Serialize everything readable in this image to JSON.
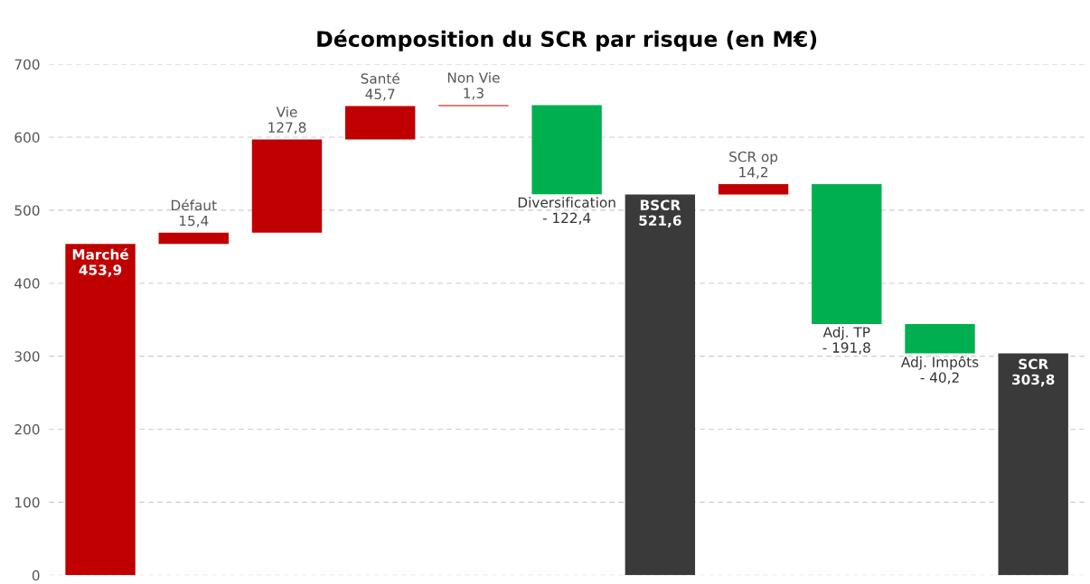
{
  "chart_data": {
    "type": "bar",
    "title": "Décomposition du SCR par risque (en M€)",
    "categories": [
      "Marché",
      "Défaut",
      "Vie",
      "Santé",
      "Non Vie",
      "Diversification",
      "BSCR",
      "SCR op",
      "Adj. TP",
      "Adj. Impôts",
      "SCR"
    ],
    "values": [
      453.9,
      15.4,
      127.8,
      45.7,
      1.3,
      -122.4,
      521.6,
      14.2,
      -191.8,
      -40.2,
      303.8
    ],
    "base": [
      0,
      453.9,
      469.3,
      597.1,
      642.8,
      644.1,
      0,
      521.6,
      535.8,
      344.0,
      0
    ],
    "colors": [
      "#c00000",
      "#c00000",
      "#c00000",
      "#c00000",
      "#c00000",
      "#00b050",
      "#3a3a3a",
      "#c00000",
      "#00b050",
      "#00b050",
      "#3a3a3a"
    ],
    "value_labels": [
      "453,9",
      "15,4",
      "127,8",
      "45,7",
      "1,3",
      "- 122,4",
      "521,6",
      "14,2",
      "- 191,8",
      "- 40,2",
      "303,8"
    ],
    "ylim": [
      0,
      700
    ],
    "yticks": [
      0,
      100,
      200,
      300,
      400,
      500,
      600,
      700
    ],
    "grid": "y",
    "tick_labels": "y"
  }
}
